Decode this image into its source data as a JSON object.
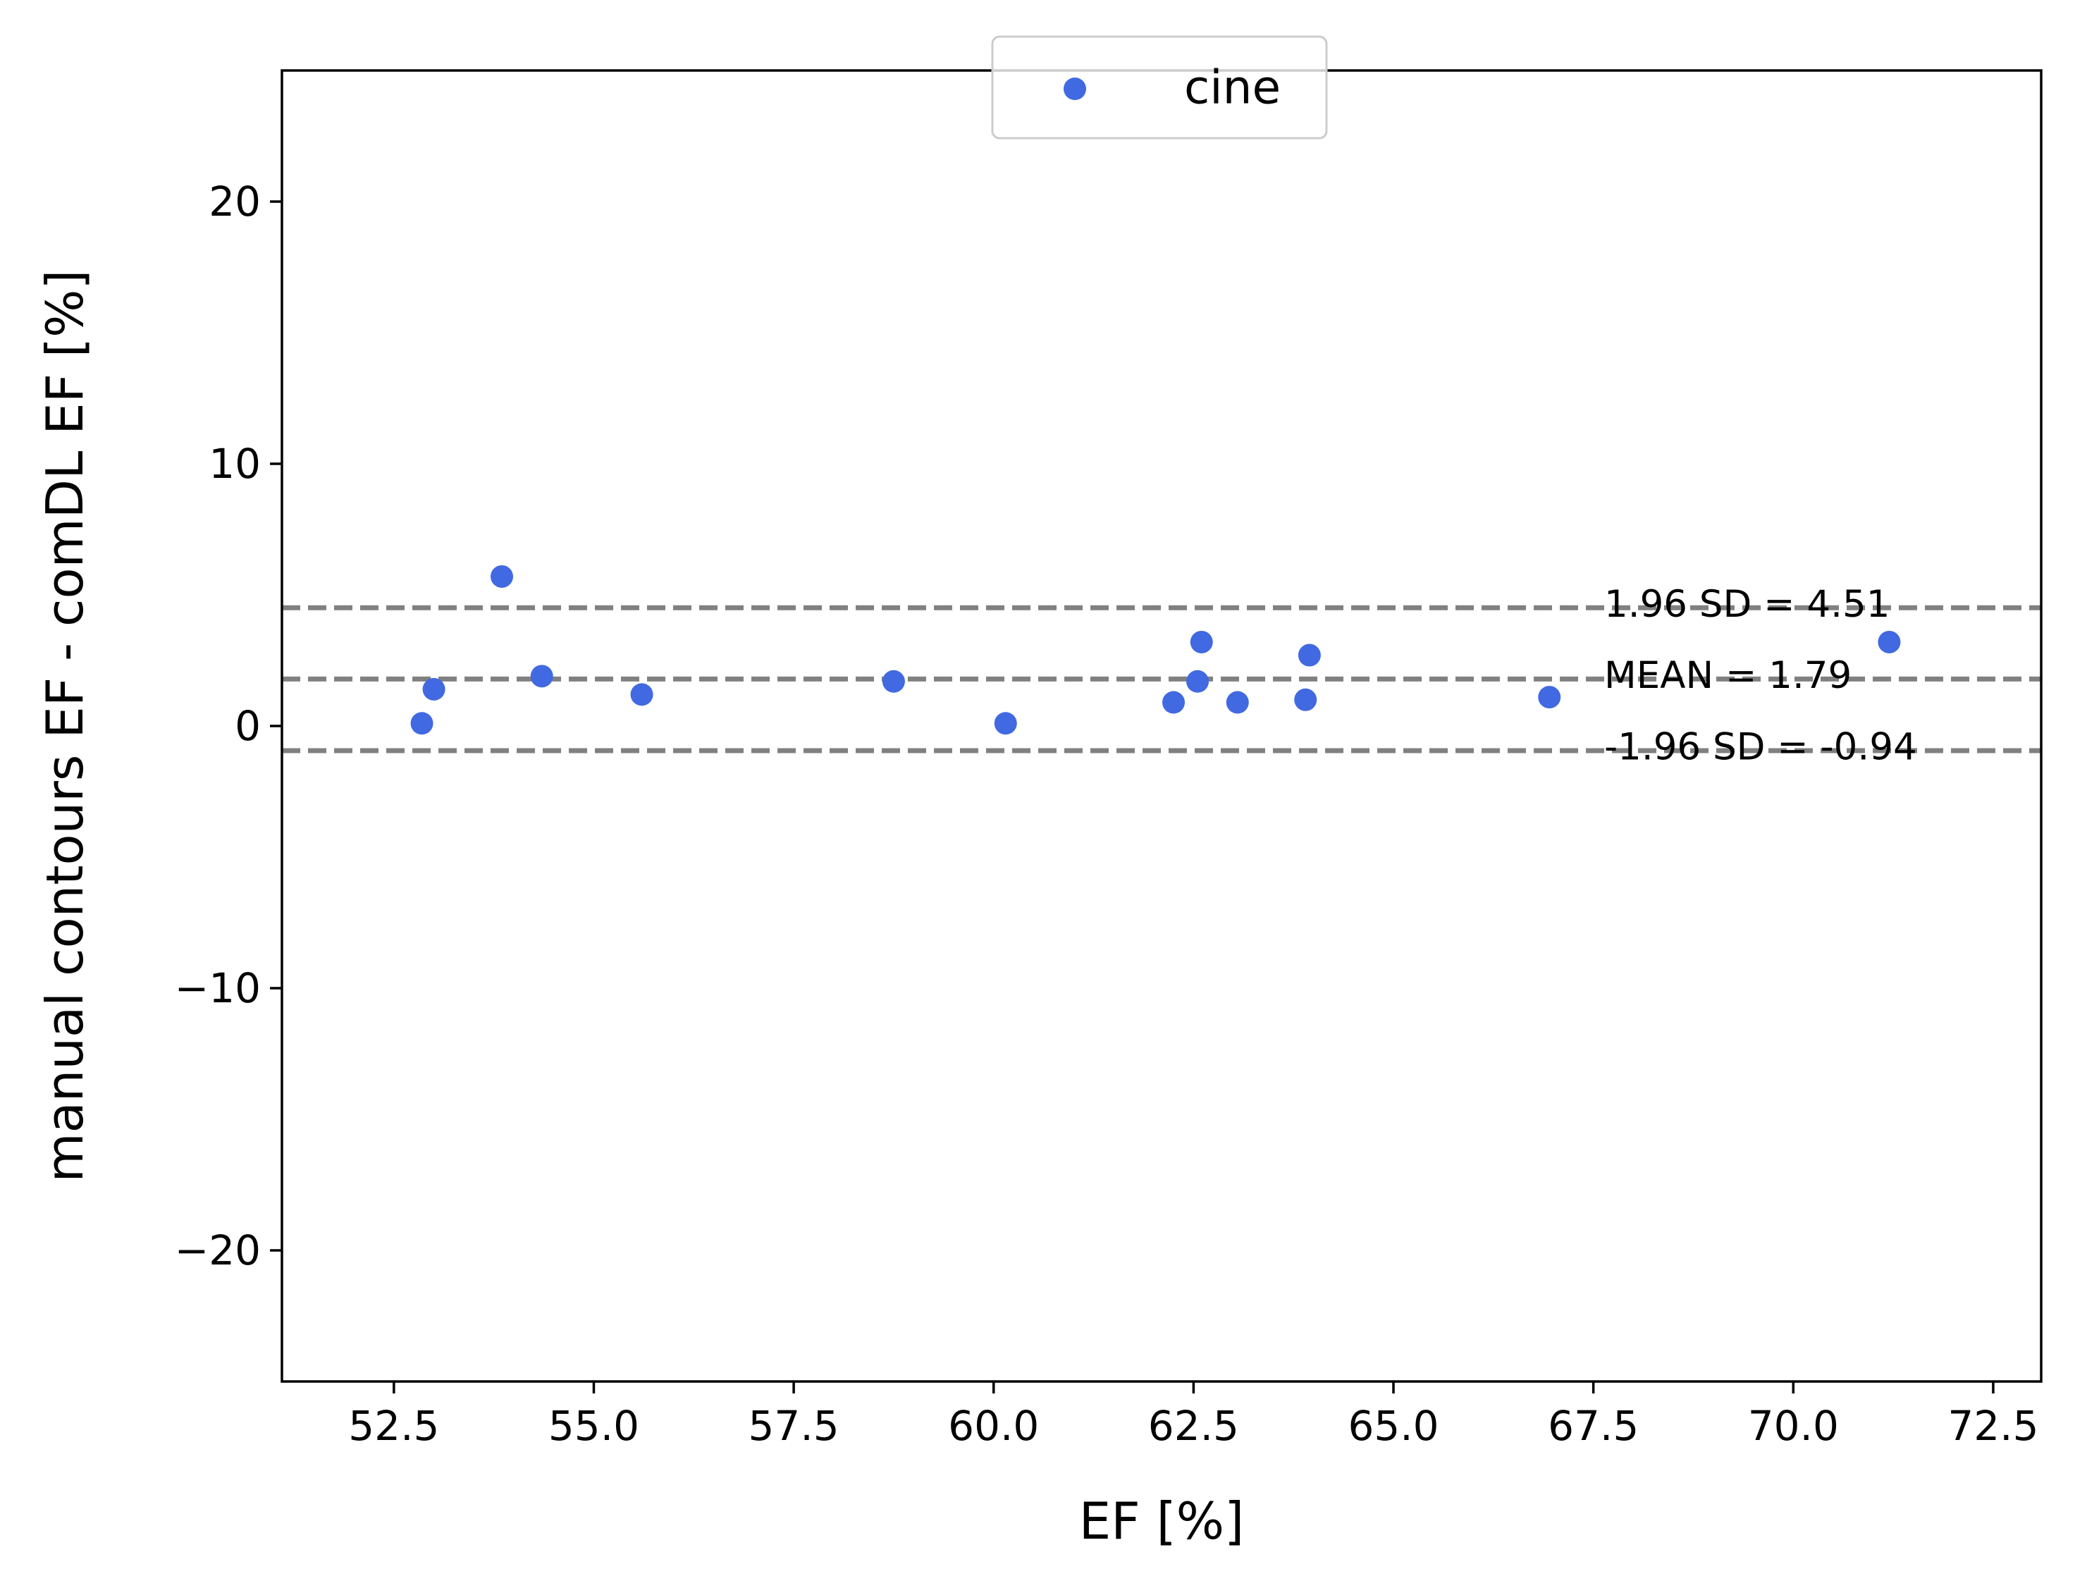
{
  "chart_data": {
    "type": "scatter",
    "xlabel": "EF [%]",
    "ylabel": "manual contours EF - comDL EF [%]",
    "xlim": [
      51.1,
      73.1
    ],
    "ylim": [
      -25,
      25
    ],
    "xticks": [
      52.5,
      55.0,
      57.5,
      60.0,
      62.5,
      65.0,
      67.5,
      70.0,
      72.5
    ],
    "xtick_labels": [
      "52.5",
      "55.0",
      "57.5",
      "60.0",
      "62.5",
      "65.0",
      "67.5",
      "70.0",
      "72.5"
    ],
    "yticks": [
      20,
      10,
      0,
      -10,
      -20
    ],
    "ytick_labels": [
      "20",
      "10",
      "0",
      "−10",
      "−20"
    ],
    "grid": false,
    "legend": {
      "position": "top-center",
      "entries": [
        {
          "name": "cine",
          "color": "#4169e1"
        }
      ]
    },
    "series": [
      {
        "name": "cine",
        "color": "#4169e1",
        "points": [
          {
            "x": 52.85,
            "y": 0.1
          },
          {
            "x": 53.0,
            "y": 1.4
          },
          {
            "x": 53.85,
            "y": 5.7
          },
          {
            "x": 54.35,
            "y": 1.9
          },
          {
            "x": 55.6,
            "y": 1.2
          },
          {
            "x": 58.75,
            "y": 1.7
          },
          {
            "x": 60.15,
            "y": 0.1
          },
          {
            "x": 62.25,
            "y": 0.9
          },
          {
            "x": 62.55,
            "y": 1.7
          },
          {
            "x": 62.6,
            "y": 3.2
          },
          {
            "x": 63.05,
            "y": 0.9
          },
          {
            "x": 63.9,
            "y": 1.0
          },
          {
            "x": 63.95,
            "y": 2.7
          },
          {
            "x": 66.95,
            "y": 1.1
          },
          {
            "x": 71.2,
            "y": 3.2
          }
        ]
      }
    ],
    "reference_lines": [
      {
        "y": 4.51,
        "label": "1.96 SD = 4.51",
        "color": "#808080",
        "style": "dashed"
      },
      {
        "y": 1.79,
        "label": "MEAN = 1.79",
        "color": "#808080",
        "style": "dashed"
      },
      {
        "y": -0.94,
        "label": "-1.96 SD = -0.94",
        "color": "#808080",
        "style": "dashed"
      }
    ]
  }
}
